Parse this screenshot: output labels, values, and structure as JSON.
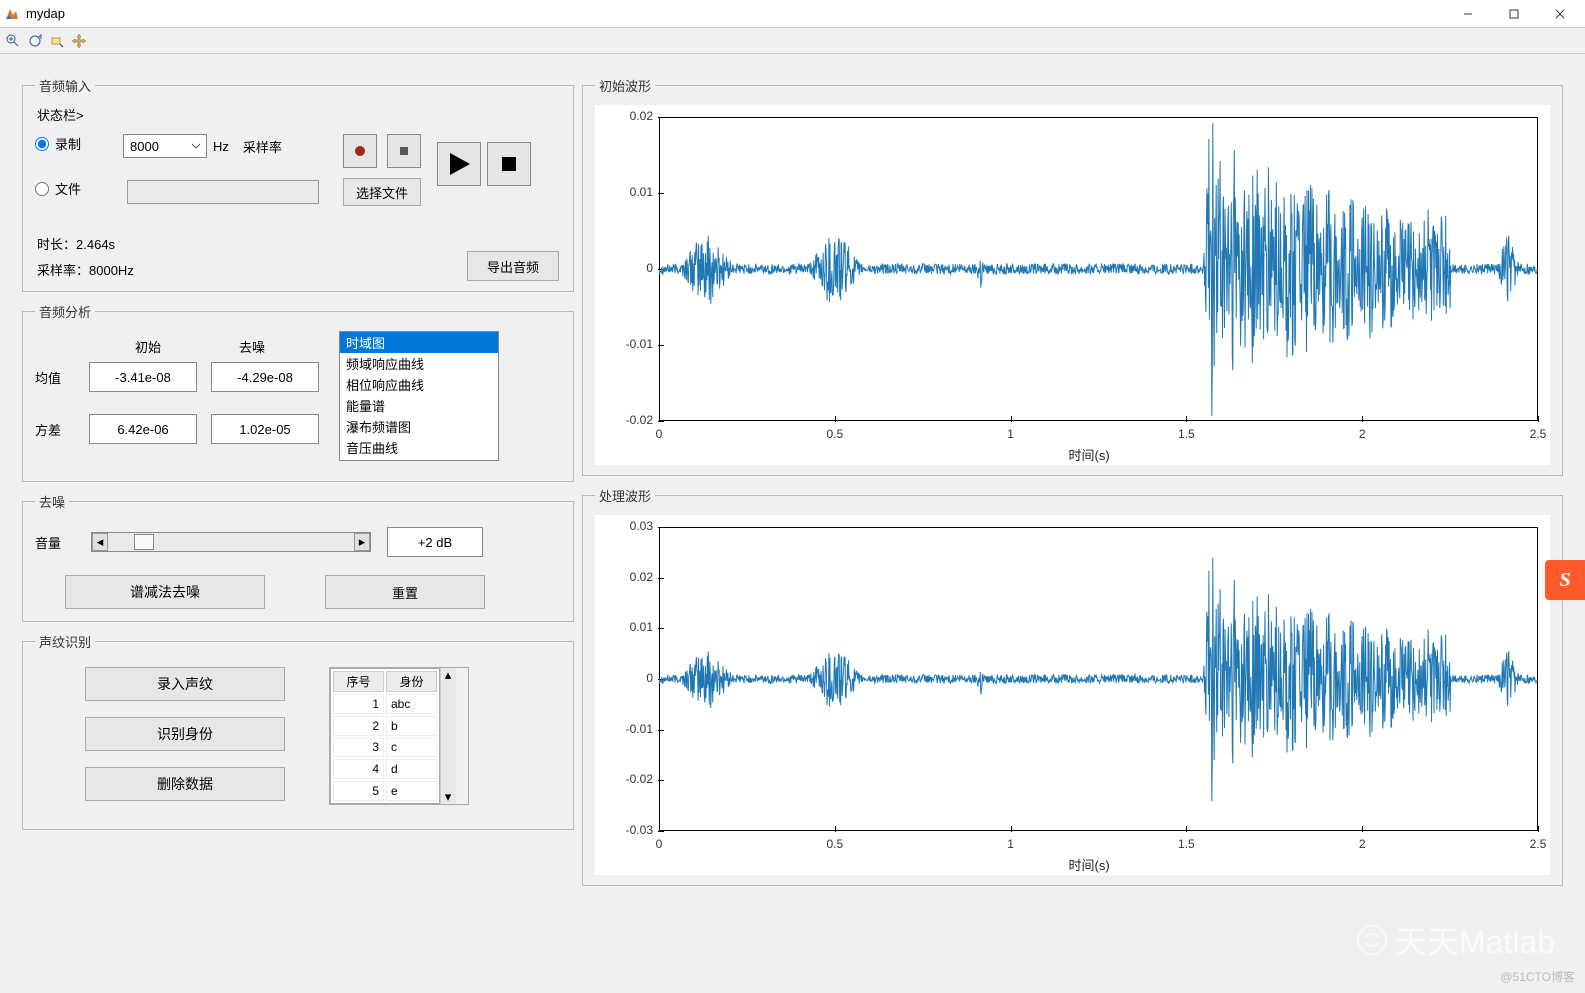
{
  "window": {
    "title": "mydap"
  },
  "colors": {
    "accent": "#0078d7",
    "waveform": "#1f77b4",
    "panel_border": "#b8b8b8",
    "bg": "#f0f0f0",
    "axes_fg": "#000000"
  },
  "toolbar_icons": [
    "zoom-in",
    "zoom-rotate",
    "data-cursor",
    "pan"
  ],
  "audio_input": {
    "legend": "音频输入",
    "status_label": "状态栏>",
    "record_label": "录制",
    "file_label": "文件",
    "sample_rate_options": [
      "8000"
    ],
    "sample_rate_value": "8000",
    "hz_label": "Hz",
    "sample_rate_caption": "采样率",
    "choose_file_label": "选择文件",
    "duration_label": "时长：",
    "duration_value": "2.464s",
    "samplerate_info_label": "采样率：",
    "samplerate_info_value": "8000Hz",
    "export_label": "导出音频"
  },
  "analysis": {
    "legend": "音频分析",
    "col1": "初始",
    "col2": "去噪",
    "mean_label": "均值",
    "var_label": "方差",
    "mean_init": "-3.41e-08",
    "mean_denoise": "-4.29e-08",
    "var_init": "6.42e-06",
    "var_denoise": "1.02e-05",
    "list": [
      "时域图",
      "频域响应曲线",
      "相位响应曲线",
      "能量谱",
      "瀑布频谱图",
      "音压曲线"
    ],
    "list_selected": 0
  },
  "denoise": {
    "legend": "去噪",
    "volume_label": "音量",
    "volume_readout": "+2 dB",
    "spectral_sub_label": "谱减法去噪",
    "reset_label": "重置"
  },
  "voiceprint": {
    "legend": "声纹识别",
    "enroll_label": "录入声纹",
    "identify_label": "识别身份",
    "delete_label": "删除数据",
    "table_cols": [
      "序号",
      "身份"
    ],
    "rows": [
      [
        "1",
        "abc"
      ],
      [
        "2",
        "b"
      ],
      [
        "3",
        "c"
      ],
      [
        "4",
        "d"
      ],
      [
        "5",
        "e"
      ]
    ]
  },
  "chart_top": {
    "legend": "初始波形",
    "xlabel": "时间(s)",
    "xlim": [
      0,
      2.5
    ],
    "xtick_step": 0.5,
    "ylim": [
      -0.02,
      0.02
    ],
    "ytick_step": 0.01
  },
  "chart_bottom": {
    "legend": "处理波形",
    "xlabel": "时间(s)",
    "xlim": [
      0,
      2.5
    ],
    "xtick_step": 0.5,
    "ylim": [
      -0.03,
      0.03
    ],
    "ytick_step": 0.01
  },
  "waveform": {
    "bursts": [
      {
        "t0": 0.05,
        "t1": 0.22,
        "amp": 0.0055
      },
      {
        "t0": 0.42,
        "t1": 0.58,
        "amp": 0.006
      },
      {
        "t0": 0.9,
        "t1": 0.93,
        "amp": 0.003
      },
      {
        "t0": 1.55,
        "t1": 2.25,
        "amp": 0.016,
        "decay": true
      },
      {
        "t0": 2.38,
        "t1": 2.45,
        "amp": 0.005
      }
    ],
    "baseline_noise": 0.0007
  },
  "watermark": {
    "text": "天天Matlab",
    "corner": "@51CTO博客"
  }
}
